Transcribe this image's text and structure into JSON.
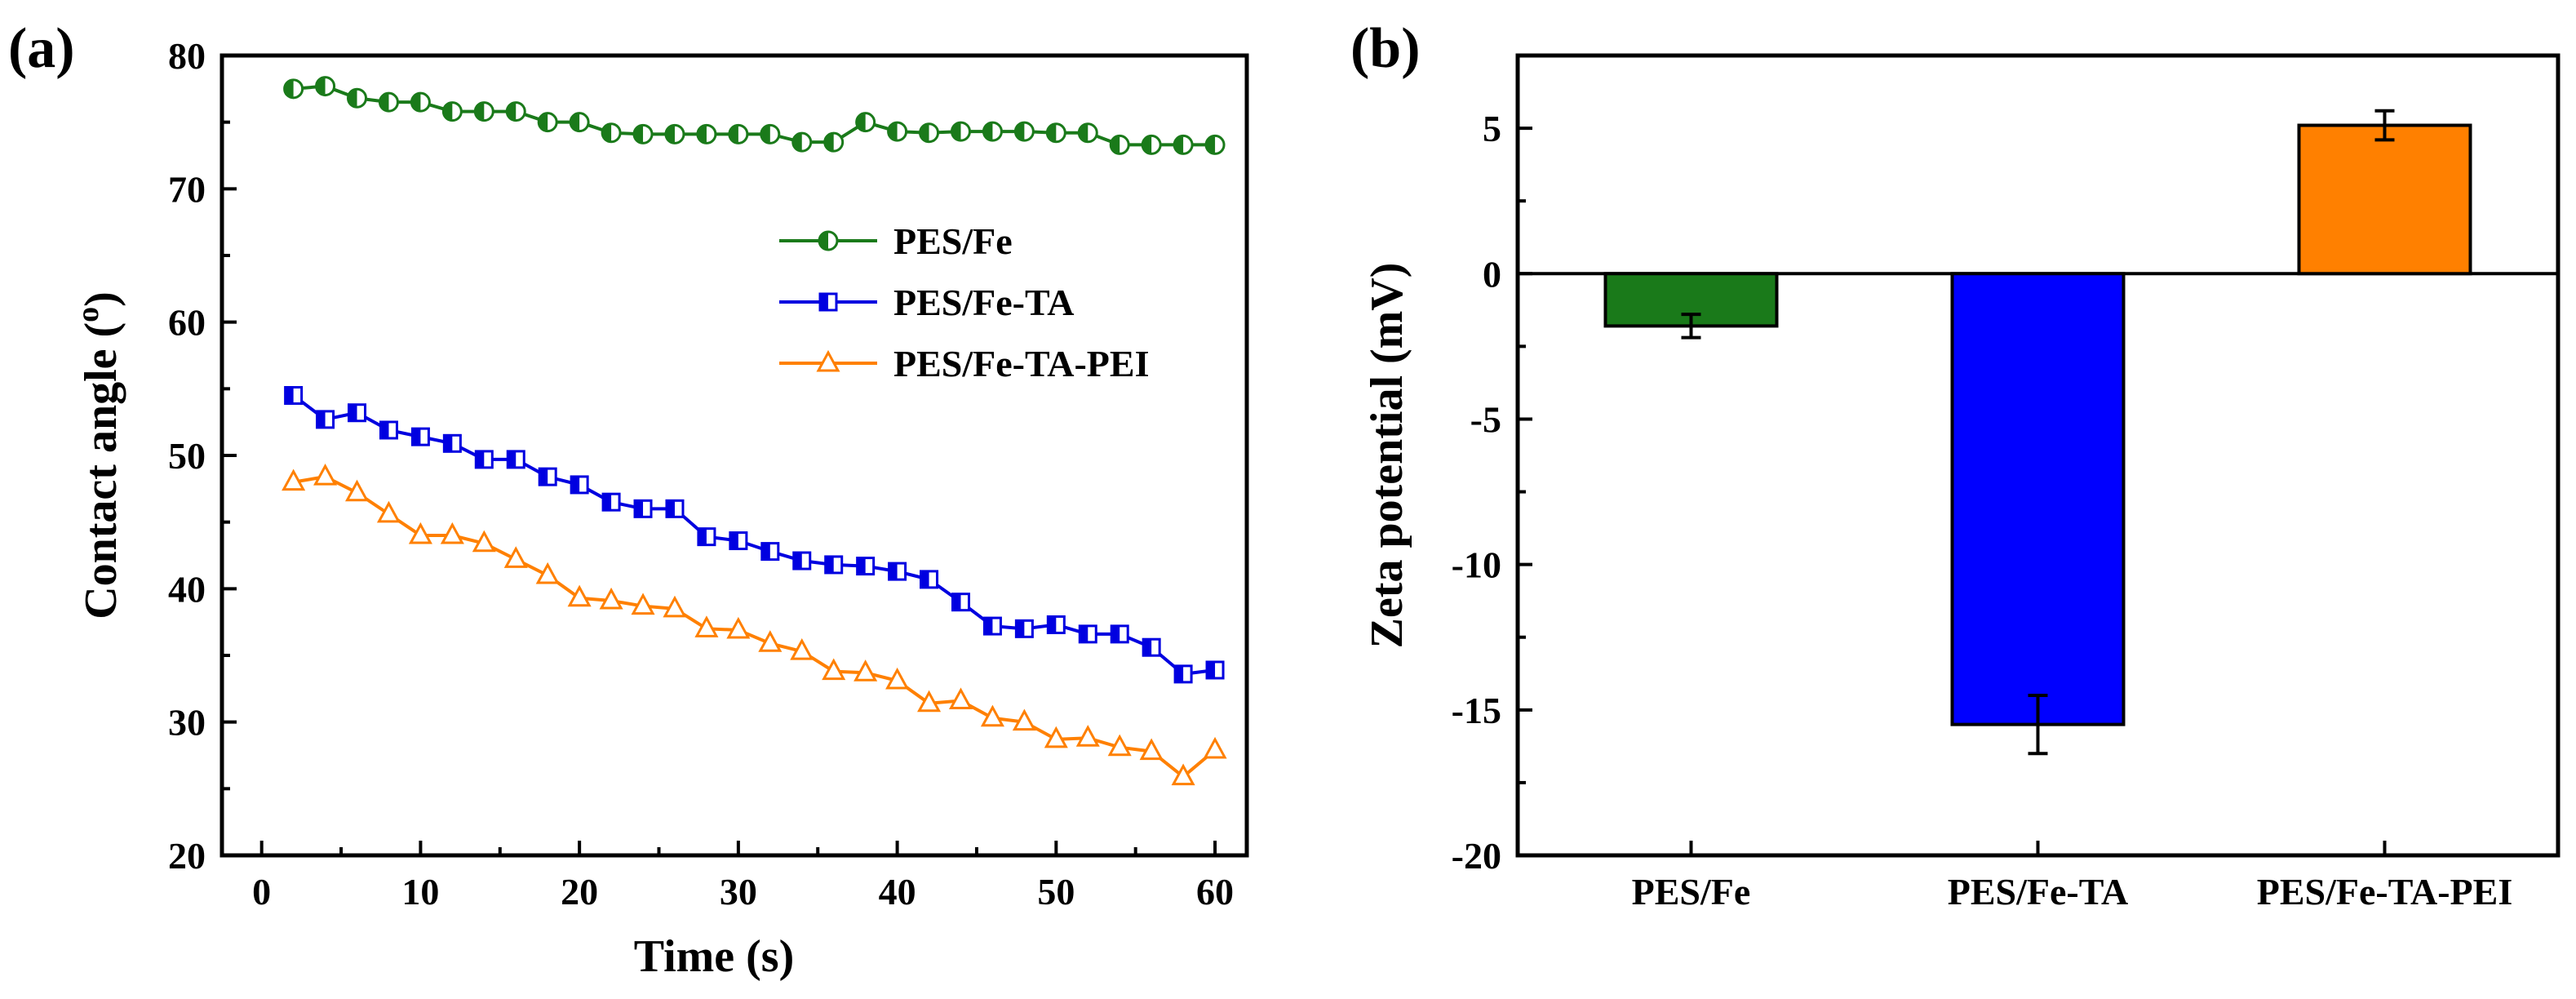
{
  "chart_data": [
    {
      "panel_label": "(a)",
      "type": "line",
      "xlabel": "Time (s)",
      "ylabel": "Contact angle (",
      "ylabel_sup": "o",
      "ylabel_end": ")",
      "xlim": [
        -2.5,
        62
      ],
      "ylim": [
        20,
        80
      ],
      "xticks": [
        0,
        10,
        20,
        30,
        40,
        50,
        60
      ],
      "yticks": [
        20,
        30,
        40,
        50,
        60,
        70,
        80
      ],
      "legend_position": "right",
      "x": [
        2,
        4,
        6,
        8,
        10,
        12,
        14,
        16,
        18,
        20,
        22,
        24,
        26,
        28,
        30,
        32,
        34,
        36,
        38,
        40,
        42,
        44,
        46,
        48,
        50,
        52,
        54,
        56,
        58,
        60
      ],
      "series": [
        {
          "name": "PES/Fe",
          "color": "#1a7a1a",
          "marker": "half-circle",
          "values": [
            77.5,
            77.7,
            76.8,
            76.5,
            76.5,
            75.8,
            75.8,
            75.8,
            75.0,
            75.0,
            74.2,
            74.1,
            74.1,
            74.1,
            74.1,
            74.1,
            73.5,
            73.5,
            75.0,
            74.3,
            74.2,
            74.3,
            74.3,
            74.3,
            74.2,
            74.2,
            73.3,
            73.3,
            73.3,
            73.3
          ]
        },
        {
          "name": "PES/Fe-TA",
          "color": "#0000e0",
          "marker": "half-square",
          "values": [
            54.5,
            52.7,
            53.2,
            51.9,
            51.4,
            50.9,
            49.7,
            49.7,
            48.4,
            47.8,
            46.5,
            46.0,
            46.0,
            43.9,
            43.6,
            42.8,
            42.1,
            41.8,
            41.7,
            41.3,
            40.7,
            39.0,
            37.2,
            37.0,
            37.3,
            36.6,
            36.6,
            35.6,
            33.6,
            33.9
          ]
        },
        {
          "name": "PES/Fe-TA-PEI",
          "color": "#ff8000",
          "marker": "triangle",
          "values": [
            48.0,
            48.4,
            47.2,
            45.6,
            44.0,
            44.0,
            43.4,
            42.2,
            41.0,
            39.3,
            39.1,
            38.7,
            38.5,
            37.0,
            36.9,
            35.9,
            35.3,
            33.8,
            33.7,
            33.1,
            31.4,
            31.6,
            30.3,
            30.0,
            28.7,
            28.8,
            28.1,
            27.8,
            25.9,
            27.9
          ]
        }
      ]
    },
    {
      "panel_label": "(b)",
      "type": "bar",
      "ylabel": "Zeta potential (mV)",
      "ylim": [
        -20,
        7.5
      ],
      "yticks": [
        -20,
        -15,
        -10,
        -5,
        0,
        5
      ],
      "categories": [
        "PES/Fe",
        "PES/Fe-TA",
        "PES/Fe-TA-PEI"
      ],
      "values": [
        -1.8,
        -15.5,
        5.1
      ],
      "errors": [
        0.4,
        1.0,
        0.5
      ],
      "colors": [
        "#1a7a1a",
        "#0000ff",
        "#ff8000"
      ]
    }
  ]
}
